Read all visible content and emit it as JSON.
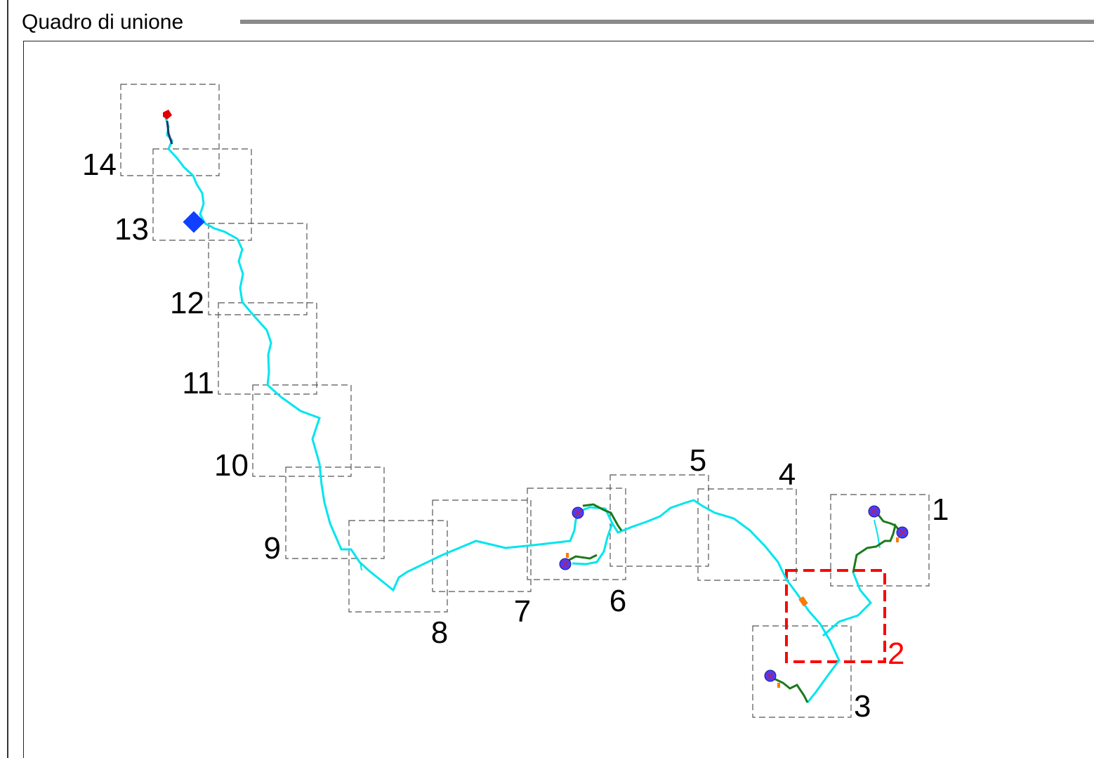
{
  "panel": {
    "title": "Quadro di unione"
  },
  "map": {
    "active_tile": "2",
    "tiles": [
      {
        "label": "1"
      },
      {
        "label": "2"
      },
      {
        "label": "3"
      },
      {
        "label": "4"
      },
      {
        "label": "5"
      },
      {
        "label": "6"
      },
      {
        "label": "7"
      },
      {
        "label": "8"
      },
      {
        "label": "9"
      },
      {
        "label": "10"
      },
      {
        "label": "11"
      },
      {
        "label": "12"
      },
      {
        "label": "13"
      },
      {
        "label": "14"
      }
    ],
    "colors": {
      "route_main": "#00e5ee",
      "route_branch": "#1a7a1a",
      "tile_border": "#555555",
      "active_tile_border": "#ff0000",
      "marker_blue": "#1040ff",
      "marker_red": "#e00000",
      "marker_orange": "#ff7a00",
      "node_purple": "#4a3cff"
    }
  }
}
